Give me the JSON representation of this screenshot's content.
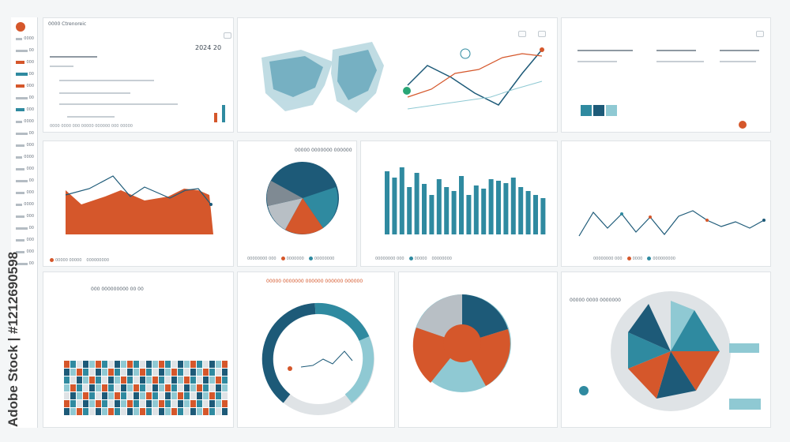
{
  "colors": {
    "navy": "#1d5a78",
    "teal": "#2f8aa0",
    "lightteal": "#8fc9d3",
    "orange": "#d5572b",
    "gray": "#b8bfc5",
    "lightgray": "#dfe3e6"
  },
  "watermark": "Adobe Stock | #1212690598",
  "header": {
    "title": "0000 Ctrenoreic",
    "value": "2024 20"
  },
  "top_left": {
    "footer": "0000 0000 000 00000 000000 000 00000"
  },
  "area_chart": {
    "legend": [
      "00000 00000",
      "000000000"
    ]
  },
  "pie_chart": {
    "title": "00000 0000000 000000",
    "legend": [
      "00000000 000",
      "0000000",
      "00000000"
    ]
  },
  "bar_chart": {
    "legend": [
      "00000000 000",
      "00000",
      "00000000"
    ]
  },
  "line_chart": {
    "legend": [
      "00000000 000",
      "0000",
      "000000000"
    ]
  },
  "heatmap": {
    "title": "000 000000000 00 00"
  },
  "ring_chart": {
    "title": "00000 0000000 000000 000000 000000"
  },
  "polar_chart": {
    "title": "00000 0000 0000000"
  },
  "sidebar": {
    "labels": [
      "0000",
      "00",
      "000",
      "00",
      "000",
      "00",
      "000",
      "0000",
      "00",
      "000",
      "0000",
      "000",
      "00",
      "000",
      "0000",
      "000",
      "00",
      "000",
      "000",
      "00"
    ]
  }
}
